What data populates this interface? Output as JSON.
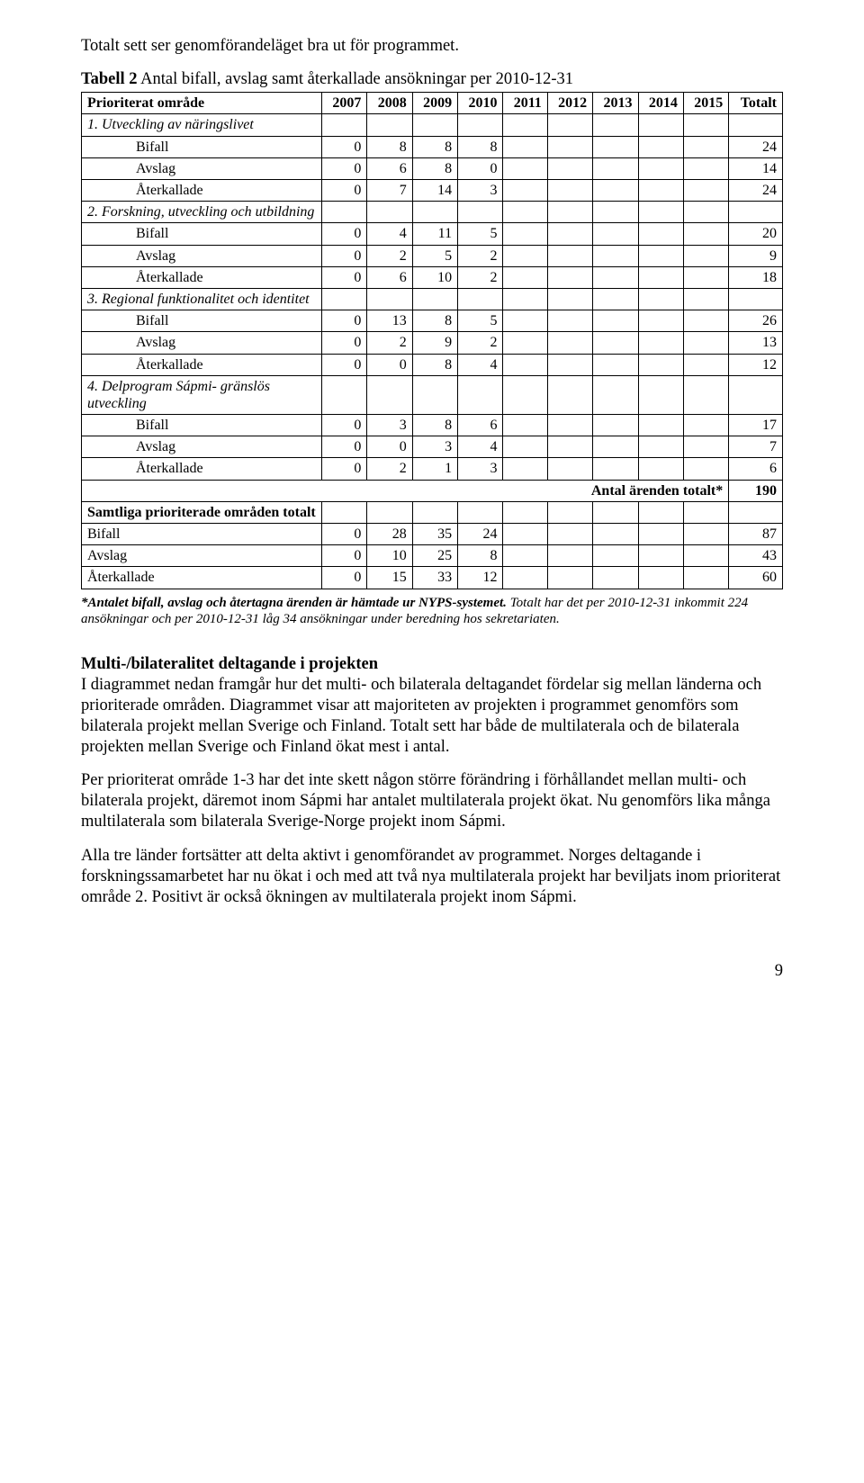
{
  "intro": "Totalt sett ser genomförandeläget bra ut för programmet.",
  "tableTitle": "Tabell 2 Antal bifall, avslag samt återkallade ansökningar per 2010-12-31",
  "table": {
    "headers": [
      "Prioriterat område",
      "2007",
      "2008",
      "2009",
      "2010",
      "2011",
      "2012",
      "2013",
      "2014",
      "2015",
      "Totalt"
    ],
    "sections": [
      {
        "label": "1. Utveckling av näringslivet",
        "rows": [
          {
            "label": "Bifall",
            "v": [
              "0",
              "8",
              "8",
              "8",
              "",
              "",
              "",
              "",
              "",
              "24"
            ]
          },
          {
            "label": "Avslag",
            "v": [
              "0",
              "6",
              "8",
              "0",
              "",
              "",
              "",
              "",
              "",
              "14"
            ]
          },
          {
            "label": "Återkallade",
            "v": [
              "0",
              "7",
              "14",
              "3",
              "",
              "",
              "",
              "",
              "",
              "24"
            ]
          }
        ]
      },
      {
        "label": "2. Forskning, utveckling och utbildning",
        "rows": [
          {
            "label": "Bifall",
            "v": [
              "0",
              "4",
              "11",
              "5",
              "",
              "",
              "",
              "",
              "",
              "20"
            ]
          },
          {
            "label": "Avslag",
            "v": [
              "0",
              "2",
              "5",
              "2",
              "",
              "",
              "",
              "",
              "",
              "9"
            ]
          },
          {
            "label": "Återkallade",
            "v": [
              "0",
              "6",
              "10",
              "2",
              "",
              "",
              "",
              "",
              "",
              "18"
            ]
          }
        ]
      },
      {
        "label": "3. Regional funktionalitet och identitet",
        "rows": [
          {
            "label": "Bifall",
            "v": [
              "0",
              "13",
              "8",
              "5",
              "",
              "",
              "",
              "",
              "",
              "26"
            ]
          },
          {
            "label": "Avslag",
            "v": [
              "0",
              "2",
              "9",
              "2",
              "",
              "",
              "",
              "",
              "",
              "13"
            ]
          },
          {
            "label": "Återkallade",
            "v": [
              "0",
              "0",
              "8",
              "4",
              "",
              "",
              "",
              "",
              "",
              "12"
            ]
          }
        ]
      },
      {
        "label": "4. Delprogram Sápmi- gränslös utveckling",
        "rows": [
          {
            "label": "Bifall",
            "v": [
              "0",
              "3",
              "8",
              "6",
              "",
              "",
              "",
              "",
              "",
              "17"
            ]
          },
          {
            "label": "Avslag",
            "v": [
              "0",
              "0",
              "3",
              "4",
              "",
              "",
              "",
              "",
              "",
              "7"
            ]
          },
          {
            "label": "Återkallade",
            "v": [
              "0",
              "2",
              "1",
              "3",
              "",
              "",
              "",
              "",
              "",
              "6"
            ]
          }
        ]
      }
    ],
    "grandTotalLabel": "Antal ärenden totalt*",
    "grandTotalValue": "190",
    "summaryLabel": "Samtliga prioriterade områden totalt",
    "summaryRows": [
      {
        "label": "Bifall",
        "v": [
          "0",
          "28",
          "35",
          "24",
          "",
          "",
          "",
          "",
          "",
          "87"
        ]
      },
      {
        "label": "Avslag",
        "v": [
          "0",
          "10",
          "25",
          "8",
          "",
          "",
          "",
          "",
          "",
          "43"
        ]
      },
      {
        "label": "Återkallade",
        "v": [
          "0",
          "15",
          "33",
          "12",
          "",
          "",
          "",
          "",
          "",
          "60"
        ]
      }
    ]
  },
  "footnote": {
    "bold": "*Antalet bifall, avslag och återtagna ärenden är hämtade ur NYPS-systemet.",
    "rest": " Totalt har det per 2010-12-31 inkommit 224 ansökningar och per 2010-12-31 låg 34 ansökningar under beredning hos sekretariaten."
  },
  "sectionHead": "Multi-/bilateralitet deltagande i projekten",
  "p1": "I diagrammet nedan framgår hur det multi- och bilaterala deltagandet fördelar sig mellan länderna och prioriterade områden. Diagrammet visar att majoriteten av projekten i programmet genomförs som bilaterala projekt mellan Sverige och Finland. Totalt sett har både de multilaterala och de bilaterala projekten mellan Sverige och Finland ökat mest i antal.",
  "p2": "Per prioriterat område 1-3 har det inte skett någon större förändring i förhållandet mellan multi- och bilaterala projekt, däremot inom Sápmi har antalet multilaterala projekt ökat. Nu genomförs lika många multilaterala som bilaterala Sverige-Norge projekt inom Sápmi.",
  "p3": "Alla tre länder fortsätter att delta aktivt i genomförandet av programmet. Norges deltagande i forskningssamarbetet har nu ökat i och med att två nya multilaterala projekt har beviljats inom prioriterat område 2. Positivt är också ökningen av multilaterala projekt inom Sápmi.",
  "pageNumber": "9"
}
